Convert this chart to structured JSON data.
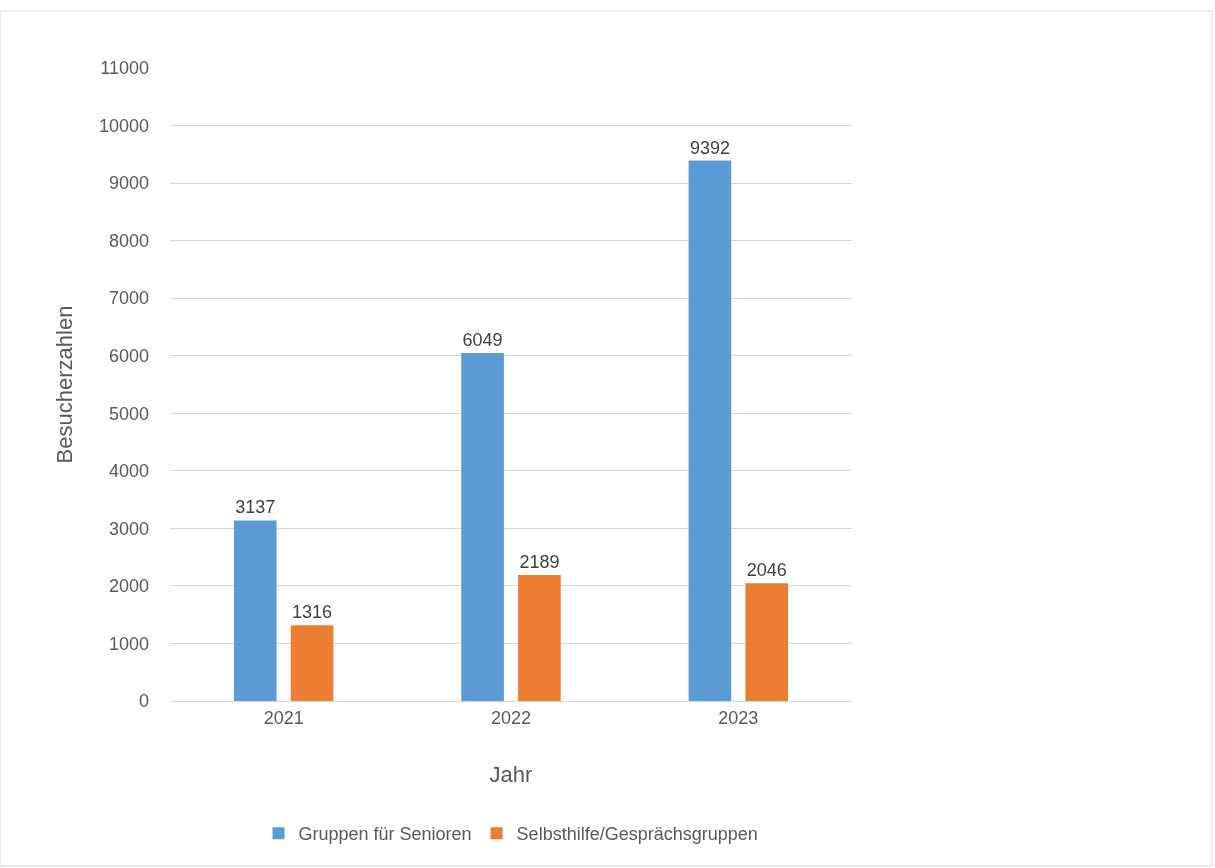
{
  "chart_data": {
    "type": "bar",
    "xlabel": "Jahr",
    "ylabel": "Besucherzahlen",
    "categories": [
      "2021",
      "2022",
      "2023"
    ],
    "series": [
      {
        "name": "Gruppen für Senioren",
        "color": "#5b9bd5",
        "values": [
          3137,
          6049,
          9392
        ]
      },
      {
        "name": "Selbsthilfe/Gesprächsgruppen",
        "color": "#ed7d31",
        "values": [
          1316,
          2189,
          2046
        ]
      }
    ],
    "ylim": [
      0,
      11000
    ],
    "yticks": [
      0,
      1000,
      2000,
      3000,
      4000,
      5000,
      6000,
      7000,
      8000,
      9000,
      10000,
      11000
    ],
    "grid": "y",
    "legend": "bottom",
    "data_labels": true
  }
}
